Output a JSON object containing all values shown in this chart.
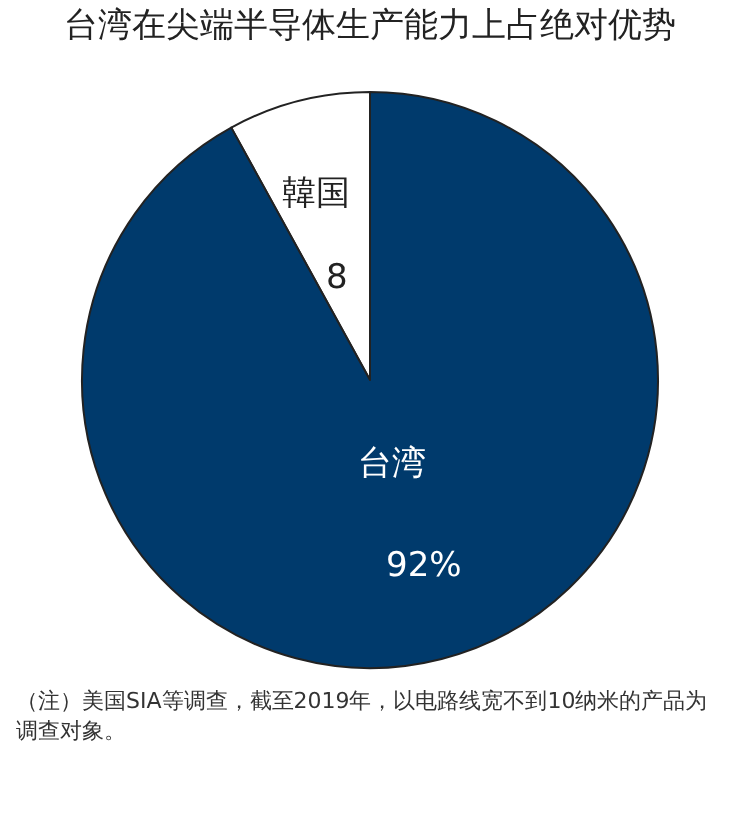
{
  "chart_data": {
    "type": "pie",
    "title": "台湾在尖端半导体生产能力上占绝对优势",
    "categories": [
      "韓国",
      "台湾"
    ],
    "values": [
      8,
      92
    ],
    "value_labels": [
      "8",
      "92%"
    ],
    "colors": [
      "#ffffff",
      "#003a6c"
    ],
    "legend": false,
    "annotations": [
      "（注）美国SIA等调查，截至2019年，以电路线宽不到10纳米的产品为调查对象。"
    ]
  }
}
